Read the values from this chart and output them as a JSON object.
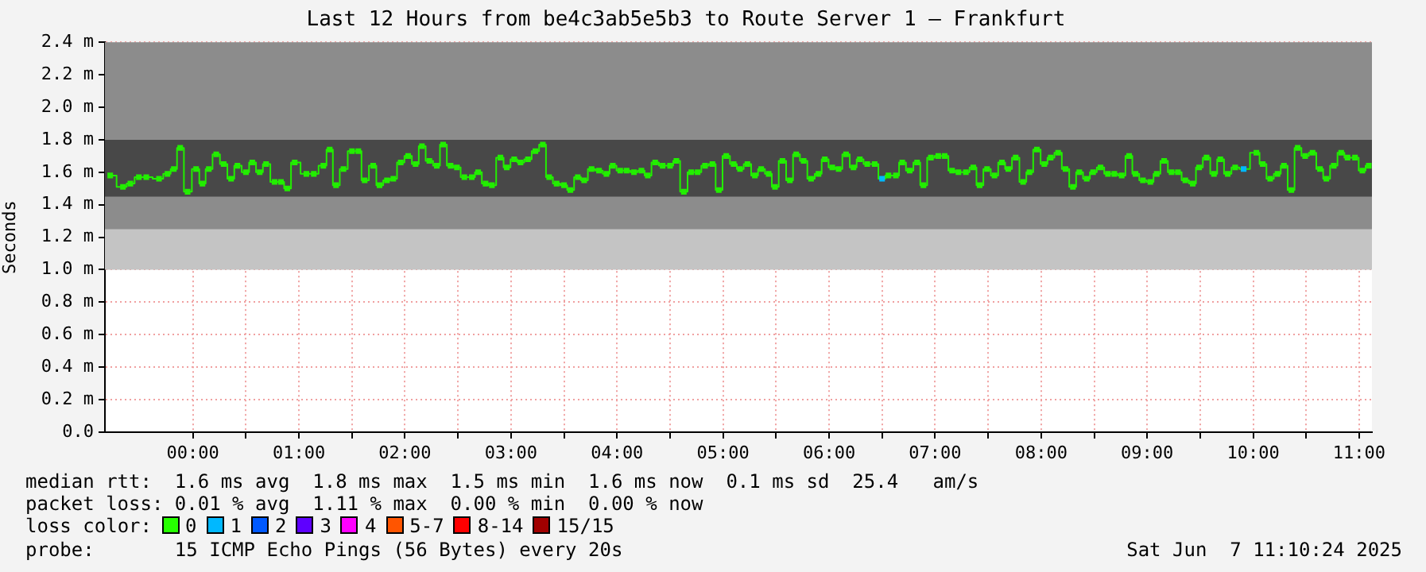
{
  "chart_data": {
    "type": "step",
    "title": "Last 12 Hours from be4c3ab5e5b3 to Route Server 1 – Frankfurt",
    "ylabel": "Seconds",
    "xlim": [
      -0.83,
      11.12
    ],
    "xticks": [
      {
        "value": 0,
        "label": "00:00"
      },
      {
        "value": 0.5,
        "label": null
      },
      {
        "value": 1,
        "label": "01:00"
      },
      {
        "value": 1.5,
        "label": null
      },
      {
        "value": 2,
        "label": "02:00"
      },
      {
        "value": 2.5,
        "label": null
      },
      {
        "value": 3,
        "label": "03:00"
      },
      {
        "value": 3.5,
        "label": null
      },
      {
        "value": 4,
        "label": "04:00"
      },
      {
        "value": 4.5,
        "label": null
      },
      {
        "value": 5,
        "label": "05:00"
      },
      {
        "value": 5.5,
        "label": null
      },
      {
        "value": 6,
        "label": "06:00"
      },
      {
        "value": 6.5,
        "label": null
      },
      {
        "value": 7,
        "label": "07:00"
      },
      {
        "value": 7.5,
        "label": null
      },
      {
        "value": 8,
        "label": "08:00"
      },
      {
        "value": 8.5,
        "label": null
      },
      {
        "value": 9,
        "label": "09:00"
      },
      {
        "value": 9.5,
        "label": null
      },
      {
        "value": 10,
        "label": "10:00"
      },
      {
        "value": 10.5,
        "label": null
      },
      {
        "value": 11,
        "label": "11:00"
      }
    ],
    "ylim": [
      0,
      2.4
    ],
    "yticks": [
      {
        "value": 0,
        "label": "0.0"
      },
      {
        "value": 0.2,
        "label": "0.2 m"
      },
      {
        "value": 0.4,
        "label": "0.4 m"
      },
      {
        "value": 0.6,
        "label": "0.6 m"
      },
      {
        "value": 0.8,
        "label": "0.8 m"
      },
      {
        "value": 1.0,
        "label": "1.0 m"
      },
      {
        "value": 1.2,
        "label": "1.2 m"
      },
      {
        "value": 1.4,
        "label": "1.4 m"
      },
      {
        "value": 1.6,
        "label": "1.6 m"
      },
      {
        "value": 1.8,
        "label": "1.8 m"
      },
      {
        "value": 2.0,
        "label": "2.0 m"
      },
      {
        "value": 2.2,
        "label": "2.2 m"
      },
      {
        "value": 2.4,
        "label": "2.4 m"
      }
    ],
    "grid": true,
    "legend": false,
    "marker": "square",
    "bands": [
      {
        "axis": "y",
        "from": 1.0,
        "to": 2.4,
        "color": "#c4c4c4"
      },
      {
        "axis": "y",
        "from": 1.25,
        "to": 2.4,
        "color": "#8c8c8c"
      },
      {
        "axis": "y",
        "from": 1.45,
        "to": 1.8,
        "color": "#484848"
      }
    ],
    "x": [
      -0.78,
      -0.66,
      -0.59,
      -0.51,
      -0.44,
      -0.32,
      -0.24,
      -0.18,
      -0.12,
      -0.05,
      0.03,
      0.09,
      0.15,
      0.22,
      0.29,
      0.36,
      0.42,
      0.5,
      0.56,
      0.63,
      0.69,
      0.77,
      0.83,
      0.89,
      0.96,
      1.07,
      1.14,
      1.23,
      1.29,
      1.35,
      1.42,
      1.5,
      1.56,
      1.62,
      1.7,
      1.76,
      1.83,
      1.89,
      1.96,
      2.03,
      2.1,
      2.16,
      2.23,
      2.3,
      2.36,
      2.43,
      2.49,
      2.56,
      2.63,
      2.69,
      2.76,
      2.82,
      2.9,
      2.96,
      3.03,
      3.09,
      3.16,
      3.23,
      3.3,
      3.36,
      3.43,
      3.5,
      3.56,
      3.63,
      3.69,
      3.76,
      3.83,
      3.9,
      3.96,
      4.03,
      4.09,
      4.16,
      4.23,
      4.29,
      4.36,
      4.43,
      4.5,
      4.56,
      4.63,
      4.7,
      4.76,
      4.83,
      4.9,
      4.96,
      5.03,
      5.1,
      5.16,
      5.23,
      5.3,
      5.36,
      5.43,
      5.49,
      5.56,
      5.63,
      5.69,
      5.76,
      5.83,
      5.9,
      5.96,
      6.03,
      6.09,
      6.16,
      6.23,
      6.29,
      6.36,
      6.43,
      6.5,
      6.56,
      6.63,
      6.69,
      6.76,
      6.83,
      6.89,
      6.96,
      7.03,
      7.09,
      7.16,
      7.22,
      7.29,
      7.36,
      7.42,
      7.49,
      7.56,
      7.63,
      7.69,
      7.76,
      7.83,
      7.89,
      7.96,
      8.03,
      8.09,
      8.16,
      8.23,
      8.3,
      8.36,
      8.43,
      8.49,
      8.56,
      8.63,
      8.69,
      8.76,
      8.83,
      8.89,
      8.96,
      9.03,
      9.09,
      9.16,
      9.23,
      9.29,
      9.36,
      9.43,
      9.49,
      9.56,
      9.63,
      9.69,
      9.76,
      9.83,
      9.91,
      10.03,
      10.09,
      10.16,
      10.23,
      10.29,
      10.36,
      10.42,
      10.49,
      10.56,
      10.63,
      10.69,
      10.76,
      10.83,
      10.89,
      10.96,
      11.03,
      11.09
    ],
    "series": [
      {
        "color": "#22ee00",
        "values": [
          1.58,
          1.51,
          1.53,
          1.57,
          1.57,
          1.56,
          1.59,
          1.62,
          1.75,
          1.48,
          1.62,
          1.53,
          1.62,
          1.71,
          1.65,
          1.56,
          1.64,
          1.6,
          1.66,
          1.6,
          1.65,
          1.54,
          1.54,
          1.5,
          1.66,
          1.59,
          1.59,
          1.64,
          1.74,
          1.52,
          1.62,
          1.73,
          1.73,
          1.55,
          1.64,
          1.52,
          1.55,
          1.56,
          1.66,
          1.7,
          1.65,
          1.76,
          1.67,
          1.64,
          1.77,
          1.64,
          1.63,
          1.57,
          1.57,
          1.6,
          1.53,
          1.52,
          1.69,
          1.63,
          1.68,
          1.66,
          1.68,
          1.73,
          1.77,
          1.57,
          1.53,
          1.52,
          1.49,
          1.57,
          1.55,
          1.62,
          1.61,
          1.59,
          1.64,
          1.61,
          1.61,
          1.6,
          1.61,
          1.58,
          1.66,
          1.64,
          1.64,
          1.67,
          1.48,
          1.6,
          1.6,
          1.64,
          1.65,
          1.49,
          1.7,
          1.65,
          1.62,
          1.65,
          1.58,
          1.62,
          1.59,
          1.51,
          1.67,
          1.55,
          1.71,
          1.67,
          1.56,
          1.59,
          1.68,
          1.63,
          1.62,
          1.71,
          1.63,
          1.68,
          1.65,
          1.65,
          1.56,
          1.58,
          1.58,
          1.66,
          1.61,
          1.66,
          1.52,
          1.69,
          1.7,
          1.7,
          1.61,
          1.6,
          1.6,
          1.63,
          1.52,
          1.62,
          1.58,
          1.66,
          1.62,
          1.69,
          1.54,
          1.6,
          1.74,
          1.65,
          1.69,
          1.72,
          1.62,
          1.51,
          1.6,
          1.56,
          1.6,
          1.63,
          1.59,
          1.59,
          1.58,
          1.7,
          1.59,
          1.55,
          1.54,
          1.59,
          1.67,
          1.6,
          1.6,
          1.55,
          1.53,
          1.63,
          1.69,
          1.59,
          1.68,
          1.59,
          1.63,
          1.62,
          1.72,
          1.65,
          1.56,
          1.59,
          1.64,
          1.49,
          1.75,
          1.7,
          1.72,
          1.62,
          1.56,
          1.64,
          1.72,
          1.69,
          1.69,
          1.61,
          1.64
        ],
        "colors": [
          "#22ee00",
          "#22ee00",
          "#22ee00",
          "#22ee00",
          "#22ee00",
          "#22ee00",
          "#22ee00",
          "#22ee00",
          "#22ee00",
          "#22ee00",
          "#22ee00",
          "#22ee00",
          "#22ee00",
          "#22ee00",
          "#22ee00",
          "#22ee00",
          "#22ee00",
          "#22ee00",
          "#22ee00",
          "#22ee00",
          "#22ee00",
          "#22ee00",
          "#22ee00",
          "#22ee00",
          "#22ee00",
          "#22ee00",
          "#22ee00",
          "#22ee00",
          "#22ee00",
          "#22ee00",
          "#22ee00",
          "#22ee00",
          "#22ee00",
          "#22ee00",
          "#22ee00",
          "#22ee00",
          "#22ee00",
          "#22ee00",
          "#22ee00",
          "#22ee00",
          "#22ee00",
          "#22ee00",
          "#22ee00",
          "#22ee00",
          "#22ee00",
          "#22ee00",
          "#22ee00",
          "#22ee00",
          "#22ee00",
          "#22ee00",
          "#22ee00",
          "#22ee00",
          "#22ee00",
          "#22ee00",
          "#22ee00",
          "#22ee00",
          "#22ee00",
          "#22ee00",
          "#22ee00",
          "#22ee00",
          "#22ee00",
          "#22ee00",
          "#22ee00",
          "#22ee00",
          "#22ee00",
          "#22ee00",
          "#22ee00",
          "#22ee00",
          "#22ee00",
          "#22ee00",
          "#22ee00",
          "#22ee00",
          "#22ee00",
          "#22ee00",
          "#22ee00",
          "#22ee00",
          "#22ee00",
          "#22ee00",
          "#22ee00",
          "#22ee00",
          "#22ee00",
          "#22ee00",
          "#22ee00",
          "#22ee00",
          "#22ee00",
          "#22ee00",
          "#22ee00",
          "#22ee00",
          "#22ee00",
          "#22ee00",
          "#22ee00",
          "#22ee00",
          "#22ee00",
          "#22ee00",
          "#22ee00",
          "#22ee00",
          "#22ee00",
          "#22ee00",
          "#22ee00",
          "#22ee00",
          "#22ee00",
          "#22ee00",
          "#22ee00",
          "#22ee00",
          "#22ee00",
          "#22ee00",
          "#00b8ff",
          "#22ee00",
          "#22ee00",
          "#22ee00",
          "#22ee00",
          "#22ee00",
          "#22ee00",
          "#22ee00",
          "#22ee00",
          "#22ee00",
          "#22ee00",
          "#22ee00",
          "#22ee00",
          "#22ee00",
          "#22ee00",
          "#22ee00",
          "#22ee00",
          "#22ee00",
          "#22ee00",
          "#22ee00",
          "#22ee00",
          "#22ee00",
          "#22ee00",
          "#22ee00",
          "#22ee00",
          "#22ee00",
          "#22ee00",
          "#22ee00",
          "#22ee00",
          "#22ee00",
          "#22ee00",
          "#22ee00",
          "#22ee00",
          "#22ee00",
          "#22ee00",
          "#22ee00",
          "#22ee00",
          "#22ee00",
          "#22ee00",
          "#22ee00",
          "#22ee00",
          "#22ee00",
          "#22ee00",
          "#22ee00",
          "#22ee00",
          "#22ee00",
          "#22ee00",
          "#22ee00",
          "#22ee00",
          "#22ee00",
          "#22ee00",
          "#00b8ff",
          "#22ee00",
          "#22ee00",
          "#22ee00",
          "#22ee00",
          "#22ee00",
          "#22ee00",
          "#22ee00",
          "#22ee00",
          "#22ee00",
          "#22ee00",
          "#22ee00",
          "#22ee00",
          "#22ee00",
          "#22ee00",
          "#22ee00",
          "#22ee00",
          "#22ee00"
        ]
      }
    ],
    "annotations": [
      "median rtt:  1.6 ms avg  1.8 ms max  1.5 ms min  1.6 ms now  0.1 ms sd  25.4   am/s",
      "packet loss: 0.01 % avg  1.11 % max  0.00 % min  0.00 % now",
      "loss color:  0  1  2  3  4  5-7  8-14  15/15",
      "probe:       15 ICMP Echo Pings (56 Bytes) every 20s",
      "Sat Jun  7 11:10:24 2025"
    ]
  }
}
